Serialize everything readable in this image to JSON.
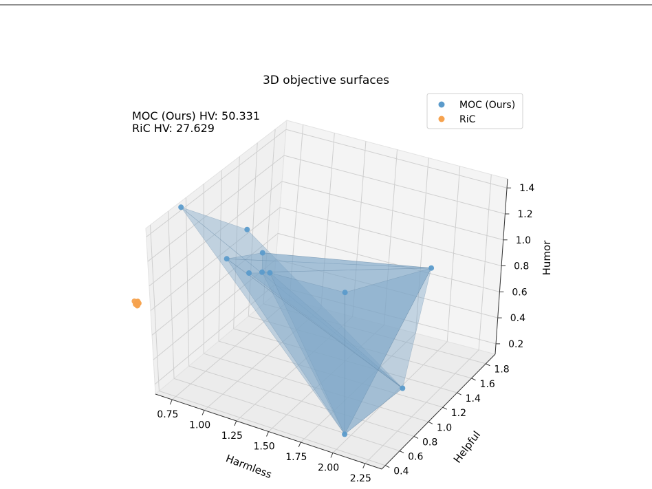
{
  "chart_data": {
    "type": "scatter",
    "projection": "3d",
    "title": "3D objective surfaces",
    "annotations": [
      "MOC (Ours) HV: 50.331",
      "RiC HV: 27.629"
    ],
    "axes": {
      "x": {
        "label": "Harmless",
        "ticks": [
          "0.75",
          "1.00",
          "1.25",
          "1.50",
          "1.75",
          "2.00",
          "2.25"
        ]
      },
      "y": {
        "label": "Helpful",
        "ticks": [
          "0.4",
          "0.6",
          "0.8",
          "1.0",
          "1.2",
          "1.4",
          "1.6",
          "1.8"
        ]
      },
      "z": {
        "label": "Humor",
        "ticks": [
          "0.2",
          "0.4",
          "0.6",
          "0.8",
          "1.0",
          "1.2",
          "1.4"
        ]
      }
    },
    "grid": true,
    "legend": {
      "placement": "upper-right",
      "entries": [
        {
          "label": "MOC (Ours)",
          "color": "#5b9bcb"
        },
        {
          "label": "RiC",
          "color": "#f6a24e"
        }
      ]
    },
    "series": [
      {
        "name": "MOC (Ours)",
        "color": "#5b9bcb",
        "surface_color": "#7ea6c8",
        "points": [
          {
            "harmless": 0.58,
            "helpful": 0.8,
            "humor": 1.38
          },
          {
            "harmless": 0.86,
            "helpful": 1.15,
            "humor": 1.1
          },
          {
            "harmless": 0.8,
            "helpful": 1.0,
            "humor": 0.93
          },
          {
            "harmless": 0.92,
            "helpful": 1.25,
            "humor": 0.88
          },
          {
            "harmless": 1.0,
            "helpful": 1.12,
            "humor": 0.82
          },
          {
            "harmless": 0.86,
            "helpful": 1.18,
            "humor": 0.74
          },
          {
            "harmless": 0.98,
            "helpful": 1.25,
            "humor": 0.74
          },
          {
            "harmless": 1.48,
            "helpful": 1.4,
            "humor": 0.65
          },
          {
            "harmless": 1.88,
            "helpful": 1.85,
            "humor": 0.7
          },
          {
            "harmless": 2.12,
            "helpful": 1.1,
            "humor": 0.25
          },
          {
            "harmless": 1.98,
            "helpful": 0.55,
            "humor": 0.15
          }
        ],
        "triangles": [
          [
            0,
            1,
            9
          ],
          [
            0,
            9,
            10
          ],
          [
            2,
            3,
            8
          ],
          [
            2,
            8,
            9
          ],
          [
            3,
            4,
            8
          ],
          [
            4,
            8,
            10
          ],
          [
            5,
            6,
            9
          ],
          [
            6,
            7,
            10
          ],
          [
            7,
            8,
            10
          ],
          [
            2,
            9,
            10
          ]
        ]
      },
      {
        "name": "RiC",
        "color": "#f6a24e",
        "points": [
          {
            "harmless": 0.6,
            "helpful": 0.2,
            "humor": 0.95
          },
          {
            "harmless": 0.62,
            "helpful": 0.21,
            "humor": 0.95
          },
          {
            "harmless": 0.61,
            "helpful": 0.22,
            "humor": 0.94
          },
          {
            "harmless": 0.63,
            "helpful": 0.2,
            "humor": 0.94
          },
          {
            "harmless": 0.61,
            "helpful": 0.21,
            "humor": 0.93
          },
          {
            "harmless": 0.62,
            "helpful": 0.22,
            "humor": 0.93
          },
          {
            "harmless": 0.6,
            "helpful": 0.21,
            "humor": 0.92
          },
          {
            "harmless": 0.62,
            "helpful": 0.2,
            "humor": 0.92
          },
          {
            "harmless": 0.61,
            "helpful": 0.22,
            "humor": 0.91
          }
        ]
      }
    ]
  }
}
